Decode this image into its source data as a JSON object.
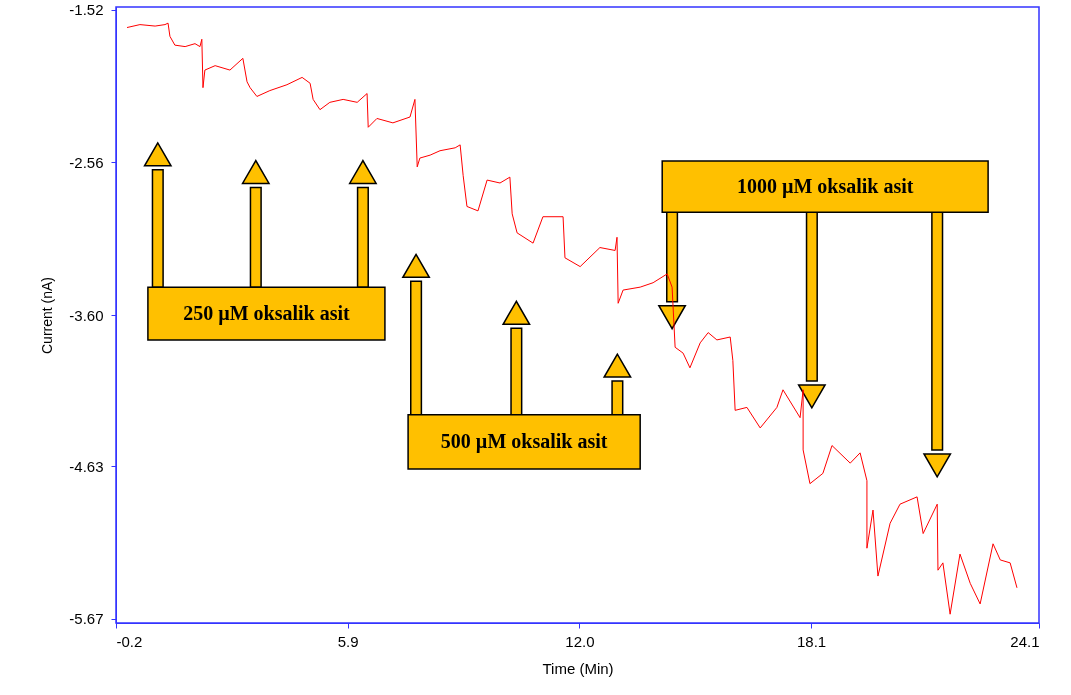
{
  "chart_data": {
    "type": "line",
    "xlabel": "Time (Min)",
    "ylabel": "Current (nA)",
    "color": "#ff0000",
    "x": [
      0.09,
      0.43,
      0.83,
      1.09,
      1.17,
      1.22,
      1.35,
      1.62,
      1.88,
      2.01,
      2.06,
      2.09,
      2.14,
      2.41,
      2.8,
      3.14,
      3.25,
      3.33,
      3.51,
      3.85,
      4.3,
      4.7,
      4.91,
      4.99,
      5.17,
      5.43,
      5.78,
      6.15,
      6.41,
      6.44,
      6.67,
      7.09,
      7.54,
      7.67,
      7.73,
      7.8,
      8.07,
      8.33,
      8.73,
      8.86,
      8.94,
      9.04,
      9.33,
      9.57,
      9.91,
      10.17,
      10.23,
      10.36,
      10.78,
      11.04,
      11.57,
      11.62,
      12.02,
      12.54,
      12.94,
      12.99,
      13.02,
      13.15,
      13.6,
      13.94,
      14.31,
      14.44,
      14.52,
      14.73,
      14.91,
      15.18,
      15.39,
      15.62,
      15.97,
      16.04,
      16.1,
      16.41,
      16.76,
      17.2,
      17.36,
      17.81,
      17.89,
      17.89,
      18.07,
      18.41,
      18.65,
      19.13,
      19.39,
      19.57,
      19.57,
      19.73,
      19.86,
      20.18,
      20.44,
      20.89,
      21.05,
      21.42,
      21.44,
      21.57,
      21.76,
      22.02,
      22.29,
      22.55,
      22.89,
      23.08,
      23.34,
      23.52
    ],
    "values": [
      -1.64,
      -1.62,
      -1.63,
      -1.62,
      -1.61,
      -1.7,
      -1.76,
      -1.77,
      -1.75,
      -1.77,
      -1.72,
      -2.05,
      -1.93,
      -1.9,
      -1.93,
      -1.85,
      -2.01,
      -2.05,
      -2.11,
      -2.07,
      -2.03,
      -1.98,
      -2.02,
      -2.13,
      -2.2,
      -2.15,
      -2.13,
      -2.15,
      -2.09,
      -2.32,
      -2.26,
      -2.29,
      -2.25,
      -2.13,
      -2.59,
      -2.53,
      -2.51,
      -2.48,
      -2.46,
      -2.44,
      -2.65,
      -2.86,
      -2.89,
      -2.68,
      -2.7,
      -2.66,
      -2.91,
      -3.04,
      -3.11,
      -2.93,
      -2.93,
      -3.21,
      -3.27,
      -3.14,
      -3.16,
      -3.07,
      -3.52,
      -3.43,
      -3.41,
      -3.38,
      -3.32,
      -3.41,
      -3.82,
      -3.86,
      -3.96,
      -3.79,
      -3.72,
      -3.77,
      -3.75,
      -3.91,
      -4.25,
      -4.23,
      -4.37,
      -4.23,
      -4.11,
      -4.3,
      -4.11,
      -4.52,
      -4.75,
      -4.68,
      -4.49,
      -4.61,
      -4.54,
      -4.73,
      -5.19,
      -4.93,
      -5.38,
      -5.02,
      -4.89,
      -4.84,
      -5.09,
      -4.89,
      -5.34,
      -5.29,
      -5.64,
      -5.23,
      -5.43,
      -5.57,
      -5.16,
      -5.27,
      -5.29,
      -5.46
    ],
    "xlim": [
      -0.2,
      24.1
    ],
    "ylim": [
      -5.7,
      -1.5
    ],
    "xticks": [
      -0.2,
      5.9,
      {
        "value": 12,
        "label": "12.0"
      },
      18.1,
      24.1
    ],
    "yticks": [
      -1.52,
      -2.56,
      {
        "value": -3.6,
        "label": "-3.60"
      },
      -4.63,
      -5.67
    ],
    "grid": false,
    "annotations": [
      "250 µM oksalik asit",
      "500 µM oksalik asit",
      "1000 µM oksalik asit"
    ]
  }
}
